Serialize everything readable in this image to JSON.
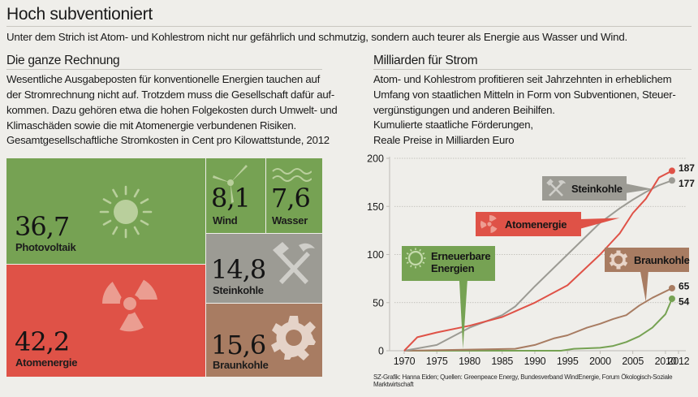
{
  "header": {
    "title": "Hoch subventioniert",
    "subtitle": "Unter dem Strich ist  Atom- und Kohlestrom nicht nur gefährlich und schmutzig, sondern auch teurer als Energie aus Wasser und Wind."
  },
  "left": {
    "section_title": "Die ganze Rechnung",
    "paragraph": "Wesentliche Ausgabeposten für konventionelle Energien tauchen auf\nder Stromrechnung nicht auf. Trotzdem muss die Gesellschaft dafür auf-\nkommen. Dazu gehören etwa die hohen Folgekosten durch Umwelt- und\nKlimaschäden sowie die mit Atomenergie verbundenen Risiken.",
    "caption": "Gesamtgesellschaftliche Stromkosten in Cent pro Kilowattstunde, 2012"
  },
  "right": {
    "section_title": "Milliarden für Strom",
    "paragraph": "Atom- und Kohlestrom profitieren seit Jahrzehnten in erheblichem\nUmfang von staatlichen Mitteln in Form von Subventionen, Steuer-\nvergünstigungen und anderen Beihilfen.",
    "caption": "Kumulierte staatliche Förderungen,\nReale Preise in Milliarden Euro"
  },
  "source": "SZ-Grafik: Hanna Eiden; Quellen: Greenpeace Energy, Bundesverband WindEnergie, Forum Ökologisch-Soziale Marktwirtschaft",
  "colors": {
    "green": "#76a253",
    "red": "#df5247",
    "grey": "#9c9b94",
    "brown": "#a87c62",
    "background": "#efeeea"
  },
  "chart_data": [
    {
      "type": "treemap",
      "title": "Gesamtgesellschaftliche Stromkosten in Cent pro Kilowattstunde, 2012",
      "unit": "Cent/kWh",
      "items": [
        {
          "label": "Photovoltaik",
          "value": 36.7,
          "display": "36,7",
          "icon": "sun-icon",
          "color": "#76a253"
        },
        {
          "label": "Wind",
          "value": 8.1,
          "display": "8,1",
          "icon": "wind-turbine-icon",
          "color": "#76a253"
        },
        {
          "label": "Wasser",
          "value": 7.6,
          "display": "7,6",
          "icon": "water-waves-icon",
          "color": "#76a253"
        },
        {
          "label": "Atomenergie",
          "value": 42.2,
          "display": "42,2",
          "icon": "radiation-icon",
          "color": "#df5247"
        },
        {
          "label": "Steinkohle",
          "value": 14.8,
          "display": "14,8",
          "icon": "hammer-pick-icon",
          "color": "#9c9b94"
        },
        {
          "label": "Braunkohle",
          "value": 15.6,
          "display": "15,6",
          "icon": "gear-icon",
          "color": "#a87c62"
        }
      ]
    },
    {
      "type": "line",
      "title": "Kumulierte staatliche Förderungen, Reale Preise in Milliarden Euro",
      "xlabel": "",
      "ylabel": "Milliarden Euro",
      "xlim": [
        1968.5,
        2013
      ],
      "ylim": [
        0,
        200
      ],
      "xticks": [
        1970,
        1975,
        1980,
        1985,
        1990,
        1995,
        2000,
        2005,
        2010,
        2012
      ],
      "yticks": [
        0,
        50,
        100,
        150,
        200
      ],
      "grid": "horizontal-dotted",
      "series": [
        {
          "name": "Atomenergie",
          "color": "#df5247",
          "end_label": "187",
          "icon": "radiation-icon",
          "points": [
            [
              1970,
              0
            ],
            [
              1972,
              14
            ],
            [
              1975,
              19
            ],
            [
              1980,
              26
            ],
            [
              1985,
              35
            ],
            [
              1987,
              41
            ],
            [
              1990,
              50
            ],
            [
              1995,
              68
            ],
            [
              2000,
              100
            ],
            [
              2003,
              122
            ],
            [
              2005,
              143
            ],
            [
              2007,
              158
            ],
            [
              2009,
              180
            ],
            [
              2011,
              187
            ]
          ]
        },
        {
          "name": "Steinkohle",
          "color": "#9c9b94",
          "end_label": "177",
          "icon": "hammer-pick-icon",
          "points": [
            [
              1970,
              0
            ],
            [
              1975,
              6
            ],
            [
              1980,
              24
            ],
            [
              1985,
              37
            ],
            [
              1987,
              46
            ],
            [
              1990,
              67
            ],
            [
              1995,
              100
            ],
            [
              2000,
              133
            ],
            [
              2003,
              148
            ],
            [
              2005,
              157
            ],
            [
              2007,
              165
            ],
            [
              2009,
              172
            ],
            [
              2011,
              177
            ]
          ]
        },
        {
          "name": "Braunkohle",
          "color": "#a87c62",
          "end_label": "65",
          "icon": "gear-icon",
          "points": [
            [
              1970,
              0
            ],
            [
              1987,
              2
            ],
            [
              1990,
              6
            ],
            [
              1993,
              13
            ],
            [
              1995,
              16
            ],
            [
              1998,
              24
            ],
            [
              2000,
              28
            ],
            [
              2002,
              33
            ],
            [
              2004,
              37
            ],
            [
              2006,
              47
            ],
            [
              2008,
              55
            ],
            [
              2011,
              65
            ]
          ]
        },
        {
          "name": "Erneuerbare Energien",
          "color": "#76a253",
          "end_label": "54",
          "icon": "sun-icon",
          "points": [
            [
              1970,
              0
            ],
            [
              1994,
              0
            ],
            [
              1996,
              2
            ],
            [
              2000,
              3
            ],
            [
              2002,
              5
            ],
            [
              2004,
              9
            ],
            [
              2006,
              15
            ],
            [
              2008,
              24
            ],
            [
              2010,
              38
            ],
            [
              2011,
              54
            ]
          ]
        }
      ],
      "callouts": [
        {
          "series": "Steinkohle",
          "lines": [
            "Steinkohle"
          ],
          "points_to": [
            2008,
            168
          ]
        },
        {
          "series": "Atomenergie",
          "lines": [
            "Atomenergie"
          ],
          "points_to": [
            2003,
            138
          ]
        },
        {
          "series": "Erneuerbare Energien",
          "lines": [
            "Erneuerbare",
            "Energien"
          ],
          "points_to": [
            1979,
            2
          ]
        },
        {
          "series": "Braunkohle",
          "lines": [
            "Braunkohle"
          ],
          "points_to": [
            2007,
            51
          ]
        }
      ]
    }
  ]
}
